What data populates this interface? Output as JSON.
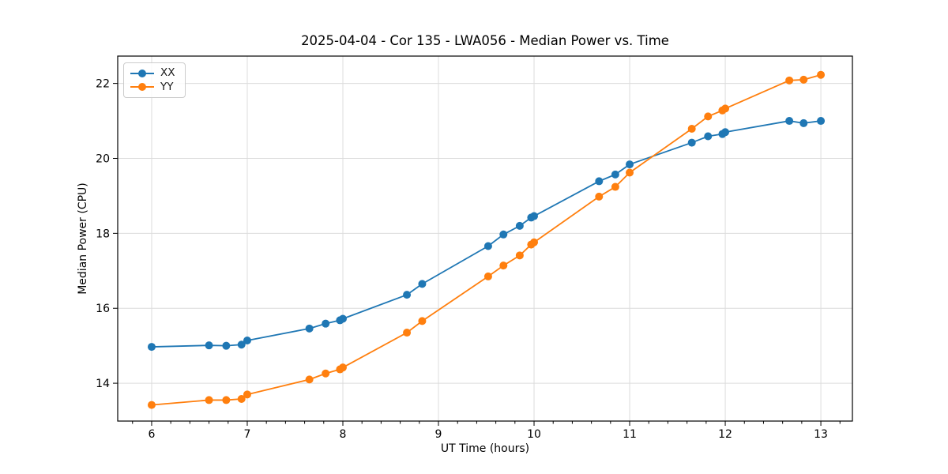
{
  "chart_data": {
    "type": "line",
    "title": "2025-04-04 - Cor 135 - LWA056 - Median Power vs. Time",
    "xlabel": "UT Time (hours)",
    "ylabel": "Median Power (CPU)",
    "xlim": [
      5.645,
      13.33
    ],
    "ylim": [
      12.99,
      22.73
    ],
    "x_ticks": [
      6,
      7,
      8,
      9,
      10,
      11,
      12,
      13
    ],
    "y_ticks": [
      14,
      16,
      18,
      20,
      22
    ],
    "x_minor_tick_step": 0.2,
    "grid": true,
    "legend_position": "upper left",
    "x": [
      6.0,
      6.6,
      6.78,
      6.94,
      7.0,
      7.65,
      7.82,
      7.97,
      8.0,
      8.67,
      8.83,
      9.52,
      9.68,
      9.85,
      9.97,
      10.0,
      10.68,
      10.85,
      11.0,
      11.65,
      11.82,
      11.97,
      12.0,
      12.67,
      12.82,
      13.0
    ],
    "series": [
      {
        "name": "XX",
        "color": "#1f77b4",
        "values": [
          14.97,
          15.01,
          15.0,
          15.03,
          15.14,
          15.46,
          15.59,
          15.68,
          15.72,
          16.36,
          16.65,
          17.66,
          17.97,
          18.2,
          18.42,
          18.46,
          19.39,
          19.57,
          19.84,
          20.42,
          20.59,
          20.65,
          20.7,
          21.0,
          20.94,
          21.0
        ]
      },
      {
        "name": "YY",
        "color": "#ff7f0e",
        "values": [
          13.42,
          13.55,
          13.55,
          13.58,
          13.7,
          14.1,
          14.26,
          14.37,
          14.42,
          15.35,
          15.66,
          16.85,
          17.14,
          17.41,
          17.7,
          17.76,
          18.98,
          19.24,
          19.62,
          20.79,
          21.12,
          21.28,
          21.33,
          22.08,
          22.1,
          22.23
        ]
      }
    ],
    "colors": {
      "grid": "#dcdcdc",
      "spine": "#000000",
      "series_xx": "#1f77b4",
      "series_yy": "#ff7f0e"
    }
  }
}
